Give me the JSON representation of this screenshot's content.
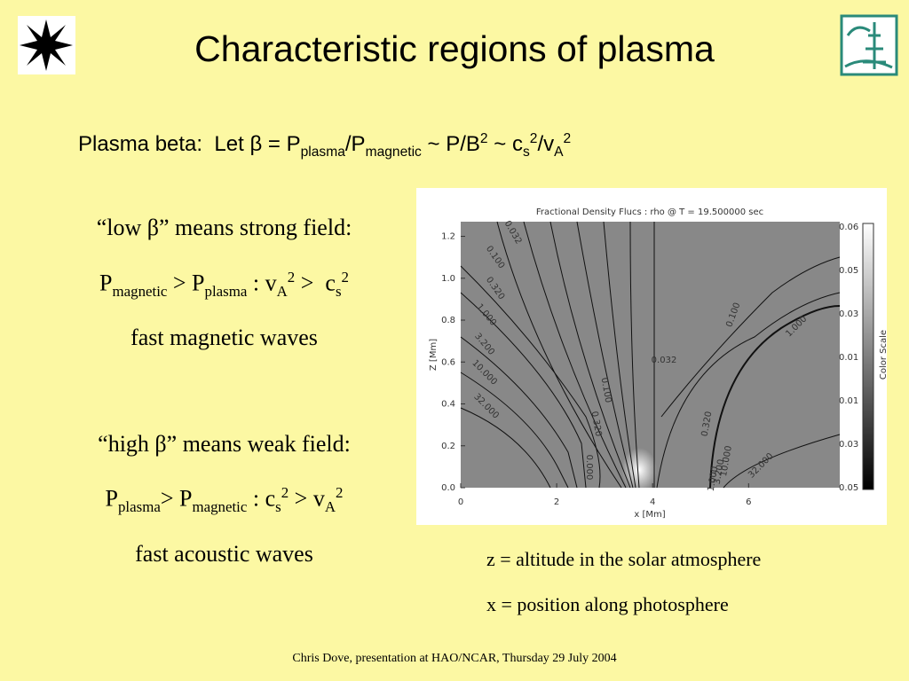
{
  "title": "Characteristic regions of plasma",
  "beta_line": [
    "Plasma beta:  Let β = P",
    "plasma",
    "/P",
    "magnetic",
    " ~ P/B",
    "2",
    " ~ c",
    "s",
    "2",
    "/v",
    "A",
    "2"
  ],
  "low_beta": {
    "heading": "“low β” means strong field:",
    "relation": [
      "P",
      "magnetic",
      " > P",
      "plasma",
      " : v",
      "A",
      "2",
      " >  c",
      "s",
      "2"
    ],
    "waves": "fast magnetic waves"
  },
  "high_beta": {
    "heading": "“high β” means weak field:",
    "relation": [
      "P",
      "plasma",
      "> P",
      "magnetic",
      " : c",
      "s",
      "2",
      " > v",
      "A",
      "2"
    ],
    "waves": "fast acoustic waves"
  },
  "figure": {
    "title": "Fractional Density Flucs : rho @ T = 19.500000 sec",
    "xlabel": "x [Mm]",
    "ylabel": "Z [Mm]",
    "xlim": [
      0,
      7.9
    ],
    "ylim": [
      0,
      1.27
    ],
    "xticks": [
      0,
      2,
      4,
      6
    ],
    "yticks": [
      {
        "value": 0,
        "label": "0.0"
      },
      {
        "value": 0.2,
        "label": "0.2"
      },
      {
        "value": 0.4,
        "label": "0.4"
      },
      {
        "value": 0.6,
        "label": "0.6"
      },
      {
        "value": 0.8,
        "label": "0.8"
      },
      {
        "value": 1.0,
        "label": "1.0"
      },
      {
        "value": 1.2,
        "label": "1.2"
      }
    ],
    "colorbar_title": "Color Scale",
    "colorbar_labels": [
      "0.06",
      "0.05",
      "0.03",
      "0.01",
      "0.01",
      "0.03",
      "0.05"
    ],
    "contour_labels": [
      "0.032",
      "0.100",
      "0.320",
      "1.000",
      "3.200",
      "10.000",
      "32.000",
      "0.100",
      "0.032",
      "1.000",
      "0.320",
      "1.000",
      "3.200",
      "10.000",
      "32.000",
      "0.100",
      "0.320",
      "0.000"
    ]
  },
  "captions": [
    "z = altitude in the solar atmosphere",
    "x = position along photosphere"
  ],
  "footer": "Chris Dove, presentation at HAO/NCAR, Thursday 29 July 2004"
}
